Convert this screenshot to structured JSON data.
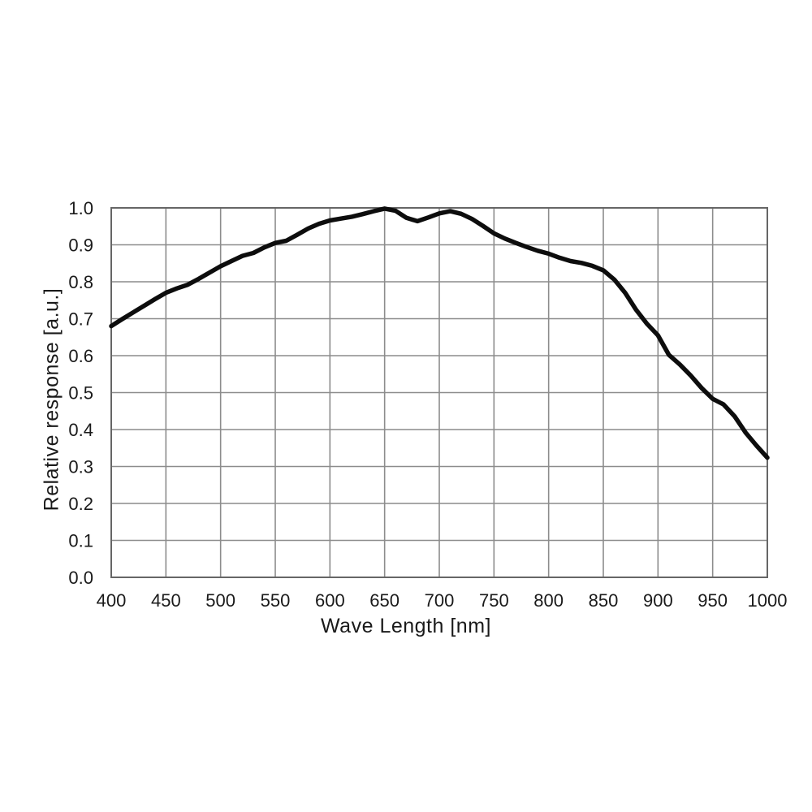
{
  "chart_data": {
    "type": "line",
    "title": "",
    "xlabel": "Wave Length [nm]",
    "ylabel": "Relative response [a.u.]",
    "xlim": [
      400,
      1000
    ],
    "ylim": [
      0.0,
      1.0
    ],
    "xtick_step": 50,
    "ytick_step": 0.1,
    "xticks": [
      400,
      450,
      500,
      550,
      600,
      650,
      700,
      750,
      800,
      850,
      900,
      950,
      1000
    ],
    "yticks": [
      0.0,
      0.1,
      0.2,
      0.3,
      0.4,
      0.5,
      0.6,
      0.7,
      0.8,
      0.9,
      1.0
    ],
    "ytick_decimals": 1,
    "grid": true,
    "legend": false,
    "colors": {
      "line": "#0d0d0d",
      "grid": "#8c8c8c",
      "border": "#666666",
      "text": "#1a1a1a",
      "background": "#ffffff"
    },
    "series": [
      {
        "name": "relative-response",
        "x": [
          400,
          410,
          420,
          430,
          440,
          450,
          460,
          470,
          480,
          490,
          500,
          510,
          520,
          530,
          540,
          550,
          560,
          570,
          580,
          590,
          600,
          610,
          620,
          630,
          640,
          650,
          660,
          670,
          680,
          690,
          700,
          710,
          720,
          730,
          740,
          750,
          760,
          770,
          780,
          790,
          800,
          810,
          820,
          830,
          840,
          850,
          860,
          870,
          880,
          890,
          900,
          910,
          920,
          930,
          940,
          950,
          960,
          970,
          980,
          990,
          1000
        ],
        "y": [
          0.68,
          0.699,
          0.717,
          0.735,
          0.753,
          0.77,
          0.782,
          0.792,
          0.808,
          0.825,
          0.842,
          0.856,
          0.87,
          0.878,
          0.893,
          0.905,
          0.911,
          0.927,
          0.944,
          0.957,
          0.966,
          0.971,
          0.976,
          0.983,
          0.991,
          0.998,
          0.992,
          0.973,
          0.964,
          0.974,
          0.985,
          0.991,
          0.984,
          0.97,
          0.951,
          0.931,
          0.917,
          0.905,
          0.894,
          0.884,
          0.876,
          0.865,
          0.856,
          0.851,
          0.843,
          0.831,
          0.806,
          0.77,
          0.724,
          0.686,
          0.655,
          0.602,
          0.576,
          0.546,
          0.512,
          0.483,
          0.468,
          0.436,
          0.392,
          0.357,
          0.324
        ]
      }
    ]
  }
}
